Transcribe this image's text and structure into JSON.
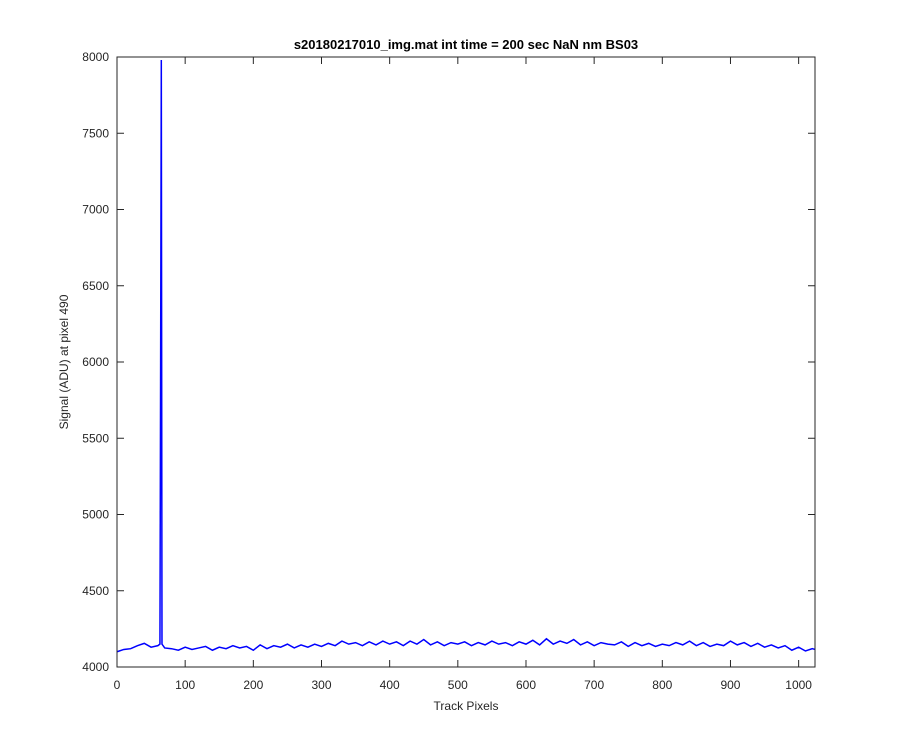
{
  "chart_data": {
    "type": "line",
    "title": "s20180217010_img.mat int time = 200 sec  NaN nm BS03",
    "x_label": "Track Pixels",
    "y_label": "Signal (ADU) at pixel 490",
    "x": [
      0,
      10,
      20,
      30,
      40,
      50,
      60,
      63,
      64,
      65,
      66,
      70,
      80,
      90,
      100,
      110,
      120,
      130,
      140,
      150,
      160,
      170,
      180,
      190,
      200,
      210,
      220,
      230,
      240,
      250,
      260,
      270,
      280,
      290,
      300,
      310,
      320,
      330,
      340,
      350,
      360,
      370,
      380,
      390,
      400,
      410,
      420,
      430,
      440,
      450,
      460,
      470,
      480,
      490,
      500,
      510,
      520,
      530,
      540,
      550,
      560,
      570,
      580,
      590,
      600,
      610,
      620,
      630,
      640,
      650,
      660,
      670,
      680,
      690,
      700,
      710,
      720,
      730,
      740,
      750,
      760,
      770,
      780,
      790,
      800,
      810,
      820,
      830,
      840,
      850,
      860,
      870,
      880,
      890,
      900,
      910,
      920,
      930,
      940,
      950,
      960,
      970,
      980,
      990,
      1000,
      1010,
      1020,
      1024
    ],
    "series": [
      {
        "color": "#0000ff",
        "values": [
          4100,
          4115,
          4120,
          4140,
          4155,
          4130,
          4140,
          4150,
          6000,
          7980,
          4150,
          4125,
          4120,
          4110,
          4130,
          4115,
          4125,
          4135,
          4110,
          4130,
          4120,
          4140,
          4125,
          4135,
          4110,
          4145,
          4120,
          4140,
          4130,
          4150,
          4125,
          4145,
          4130,
          4150,
          4135,
          4155,
          4140,
          4170,
          4150,
          4160,
          4140,
          4165,
          4145,
          4170,
          4150,
          4165,
          4140,
          4170,
          4150,
          4180,
          4145,
          4165,
          4140,
          4160,
          4150,
          4165,
          4140,
          4160,
          4145,
          4170,
          4150,
          4160,
          4140,
          4165,
          4150,
          4175,
          4145,
          4185,
          4150,
          4170,
          4155,
          4180,
          4145,
          4165,
          4140,
          4160,
          4150,
          4145,
          4165,
          4135,
          4160,
          4140,
          4155,
          4135,
          4150,
          4140,
          4160,
          4145,
          4170,
          4140,
          4160,
          4135,
          4150,
          4140,
          4170,
          4145,
          4160,
          4135,
          4155,
          4130,
          4145,
          4125,
          4140,
          4110,
          4130,
          4105,
          4120,
          4115
        ]
      }
    ],
    "xlim": [
      0,
      1024
    ],
    "xticks": [
      0,
      100,
      200,
      300,
      400,
      500,
      600,
      700,
      800,
      900,
      1000
    ],
    "ylim": [
      4000,
      8000
    ],
    "yticks": [
      4000,
      4500,
      5000,
      5500,
      6000,
      6500,
      7000,
      7500,
      8000
    ],
    "grid": false
  }
}
